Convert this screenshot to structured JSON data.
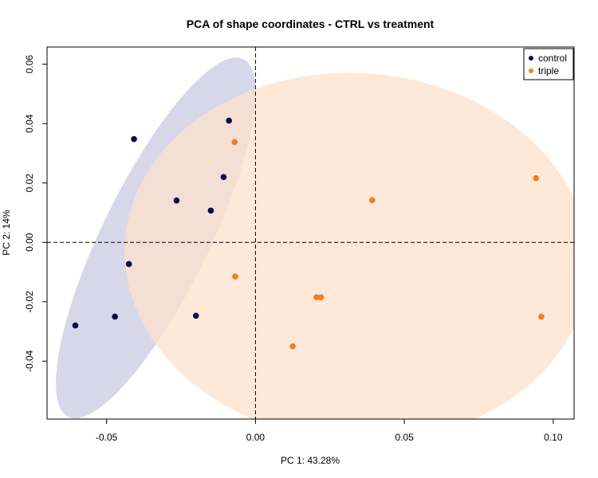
{
  "chart_data": {
    "type": "scatter",
    "title": "PCA of shape coordinates - CTRL vs treatment",
    "xlabel": "PC 1: 43.28%",
    "ylabel": "PC 2: 14%",
    "xlim": [
      -0.07,
      0.107
    ],
    "ylim": [
      -0.0595,
      0.0658
    ],
    "x_ticks": [
      -0.05,
      0.0,
      0.05,
      0.1
    ],
    "x_tick_labels": [
      "-0.05",
      "0.00",
      "0.05",
      "0.10"
    ],
    "y_ticks": [
      -0.04,
      -0.02,
      0.0,
      0.02,
      0.04,
      0.06
    ],
    "y_tick_labels": [
      "-0.04",
      "-0.02",
      "0.00",
      "0.02",
      "0.04",
      "0.06"
    ],
    "reference_lines": {
      "x": 0,
      "y": 0,
      "style": "dashed"
    },
    "legend_position": "top-right",
    "series": [
      {
        "name": "control",
        "color": "#0d0650",
        "ellipse_color": "#c9c9e1",
        "points": [
          [
            -0.0605,
            -0.028
          ],
          [
            -0.0408,
            0.0348
          ],
          [
            -0.0089,
            0.041
          ],
          [
            -0.0107,
            0.022
          ],
          [
            -0.0265,
            0.0141
          ],
          [
            -0.015,
            0.0107
          ],
          [
            -0.0425,
            -0.0073
          ],
          [
            -0.0472,
            -0.025
          ],
          [
            -0.02,
            -0.0247
          ]
        ],
        "ellipse": {
          "center": [
            -0.0335,
            0.0015
          ],
          "semi_axes": [
            0.018,
            0.067
          ],
          "rotation_deg": -26
        }
      },
      {
        "name": "triple",
        "color": "#f57c1f",
        "ellipse_color": "#fde1cc",
        "points": [
          [
            -0.007,
            0.0338
          ],
          [
            -0.0068,
            -0.0115
          ],
          [
            0.0392,
            0.0142
          ],
          [
            0.0942,
            0.0216
          ],
          [
            0.0205,
            -0.0185
          ],
          [
            0.022,
            -0.0185
          ],
          [
            0.0125,
            -0.035
          ],
          [
            0.096,
            -0.025
          ]
        ],
        "ellipse": {
          "center": [
            0.034,
            -0.005
          ],
          "semi_axes": [
            0.078,
            0.062
          ],
          "rotation_deg": -4
        }
      }
    ]
  }
}
